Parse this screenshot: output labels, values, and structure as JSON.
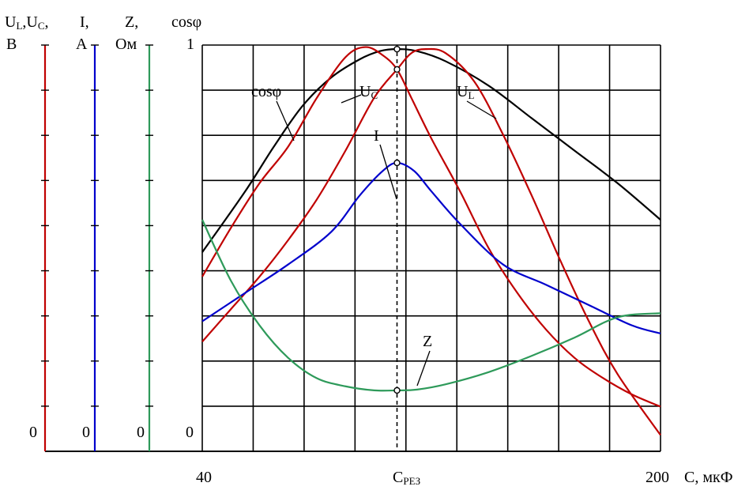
{
  "chart_data": {
    "type": "line",
    "x_axis": {
      "label": "C, мкФ",
      "tick_labels": [
        "40",
        "C",
        "200"
      ],
      "resonance_label": "C",
      "resonance_label_sub": "РЕЗ",
      "range": [
        40,
        200
      ],
      "gridlines": 9
    },
    "y_axes": [
      {
        "id": "U",
        "label_line1": "U",
        "label_line1_sub1": "L",
        "label_line1_mid": ",U",
        "label_line1_sub2": "C",
        "label_line1_end": ",",
        "unit": "B",
        "zero": "0",
        "color": "#c00000"
      },
      {
        "id": "I",
        "label_line1": "I,",
        "unit": "A",
        "zero": "0",
        "color": "#0000cc"
      },
      {
        "id": "Z",
        "label_line1": "Z,",
        "unit": "Ом",
        "zero": "0",
        "color": "#2e9a5a"
      },
      {
        "id": "cos",
        "label_line1": "cosφ",
        "unit": "1",
        "zero": "0",
        "color": "#000000"
      }
    ],
    "ylim": [
      0,
      1
    ],
    "grid": true,
    "series": [
      {
        "name": "cosφ",
        "name_main": "cosφ",
        "name_sub": "",
        "color": "#000000",
        "x": [
          40,
          55,
          65,
          75,
          85,
          95,
          102,
          108,
          115,
          125,
          140,
          155,
          170,
          185,
          200
        ],
        "y": [
          0.49,
          0.64,
          0.75,
          0.85,
          0.92,
          0.965,
          0.985,
          0.99,
          0.985,
          0.96,
          0.9,
          0.82,
          0.74,
          0.66,
          0.57
        ]
      },
      {
        "name": "U_C",
        "name_main": "U",
        "name_sub": "C",
        "color": "#c00000",
        "x": [
          40,
          50,
          60,
          70,
          80,
          90,
          97,
          103,
          108,
          113,
          120,
          130,
          140,
          150,
          160,
          170,
          180,
          190,
          200
        ],
        "y": [
          0.43,
          0.55,
          0.66,
          0.75,
          0.87,
          0.97,
          0.995,
          0.975,
          0.94,
          0.87,
          0.77,
          0.64,
          0.5,
          0.39,
          0.3,
          0.23,
          0.18,
          0.14,
          0.11
        ]
      },
      {
        "name": "U_L",
        "name_main": "U",
        "name_sub": "L",
        "color": "#c00000",
        "x": [
          40,
          50,
          60,
          70,
          80,
          90,
          100,
          108,
          113,
          118,
          125,
          135,
          145,
          155,
          165,
          175,
          185,
          200
        ],
        "y": [
          0.27,
          0.35,
          0.43,
          0.52,
          0.62,
          0.74,
          0.87,
          0.94,
          0.98,
          0.99,
          0.98,
          0.91,
          0.78,
          0.63,
          0.47,
          0.32,
          0.19,
          0.04
        ]
      },
      {
        "name": "I",
        "name_main": "I",
        "name_sub": "",
        "color": "#0000cc",
        "x": [
          40,
          55,
          70,
          85,
          95,
          103,
          108,
          114,
          120,
          130,
          145,
          160,
          175,
          190,
          200
        ],
        "y": [
          0.32,
          0.39,
          0.46,
          0.54,
          0.63,
          0.69,
          0.71,
          0.69,
          0.64,
          0.56,
          0.46,
          0.41,
          0.36,
          0.31,
          0.29
        ]
      },
      {
        "name": "Z",
        "name_main": "Z",
        "name_sub": "",
        "color": "#2e9a5a",
        "x": [
          40,
          50,
          60,
          70,
          80,
          90,
          100,
          108,
          115,
          125,
          140,
          155,
          170,
          185,
          200
        ],
        "y": [
          0.57,
          0.42,
          0.31,
          0.23,
          0.18,
          0.16,
          0.15,
          0.15,
          0.152,
          0.165,
          0.195,
          0.235,
          0.28,
          0.33,
          0.34
        ]
      }
    ],
    "resonance_x": 108,
    "markers": [
      {
        "x": 108,
        "y": 0.99
      },
      {
        "x": 108,
        "y": 0.94
      },
      {
        "x": 108,
        "y": 0.71
      },
      {
        "x": 108,
        "y": 0.15
      }
    ]
  }
}
